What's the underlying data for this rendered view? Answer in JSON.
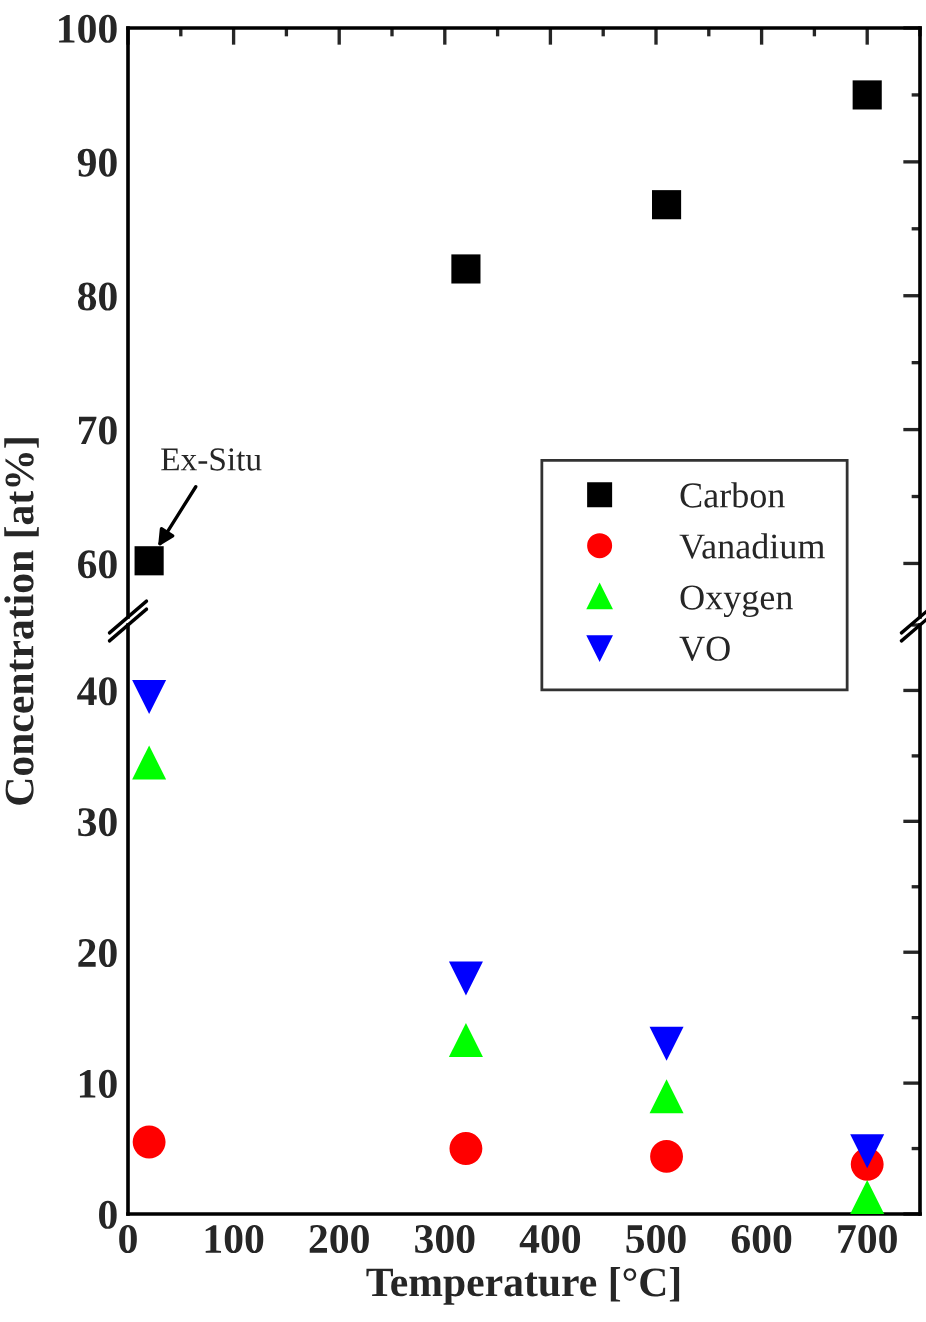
{
  "chart_data": [
    {
      "type": "scatter",
      "xlim": [
        0,
        750
      ],
      "ylim": [
        56,
        100
      ],
      "yticks": [
        60,
        70,
        80,
        90,
        100
      ],
      "tick_labels": "y",
      "legend": "right",
      "grid": false,
      "series": [
        {
          "name": "Carbon",
          "color": "#000000",
          "marker": "square",
          "x": [
            20,
            320,
            510,
            700
          ],
          "values": [
            60.2,
            82,
            86.8,
            95
          ]
        }
      ],
      "annotations": [
        {
          "text": "Ex-Situ",
          "x": 20,
          "y": 60.2
        }
      ]
    },
    {
      "type": "scatter",
      "xlim": [
        0,
        750
      ],
      "xticks": [
        0,
        100,
        200,
        300,
        400,
        500,
        600,
        700
      ],
      "ylim": [
        0,
        45
      ],
      "yticks": [
        0,
        10,
        20,
        30,
        40
      ],
      "xlabel": "Temperature [°C]",
      "ylabel": "Concentration [at%]",
      "legend": "right",
      "grid": false,
      "series": [
        {
          "name": "Vanadium",
          "color": "#ff0000",
          "marker": "circle",
          "x": [
            20,
            320,
            510,
            700
          ],
          "values": [
            5.5,
            5,
            4.4,
            3.8
          ]
        },
        {
          "name": "Oxygen",
          "color": "#00ff00",
          "marker": "triangle",
          "x": [
            20,
            320,
            510,
            700
          ],
          "values": [
            34.5,
            13.3,
            9,
            1.3
          ]
        },
        {
          "name": "VO",
          "color": "#0000ff",
          "marker": "triangle_down",
          "x": [
            20,
            320,
            510,
            700
          ],
          "values": [
            39.5,
            18,
            13,
            4.8
          ]
        }
      ]
    }
  ]
}
